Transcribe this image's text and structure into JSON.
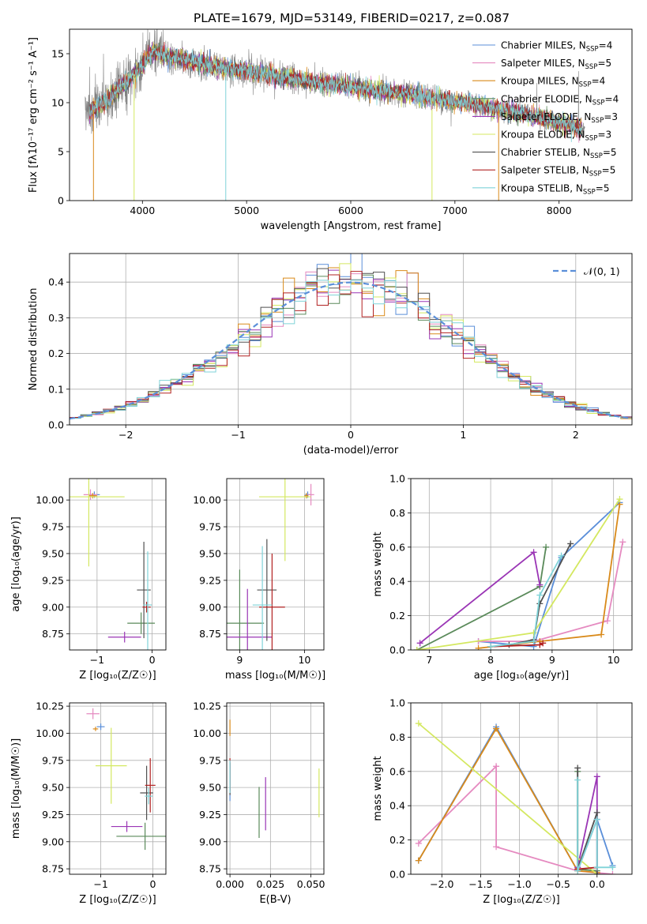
{
  "figure": {
    "title": "PLATE=1679, MJD=53149, FIBERID=0217, z=0.087"
  },
  "legend_models": [
    {
      "name": "Chabrier MILES",
      "nssp": "4",
      "color": "#5b8fd9"
    },
    {
      "name": "Salpeter MILES",
      "nssp": "5",
      "color": "#e58ac0"
    },
    {
      "name": "Kroupa MILES",
      "nssp": "4",
      "color": "#d98a1a"
    },
    {
      "name": "Chabrier ELODIE",
      "nssp": "4",
      "color": "#5a8a5a"
    },
    {
      "name": "Salpeter ELODIE",
      "nssp": "3",
      "color": "#9a35b5"
    },
    {
      "name": "Kroupa ELODIE",
      "nssp": "3",
      "color": "#d4e860"
    },
    {
      "name": "Chabrier STELIB",
      "nssp": "5",
      "color": "#505050"
    },
    {
      "name": "Salpeter STELIB",
      "nssp": "5",
      "color": "#b22222"
    },
    {
      "name": "Kroupa STELIB",
      "nssp": "5",
      "color": "#7fd3d8"
    }
  ],
  "chart_data": [
    {
      "id": "spectrum",
      "type": "line",
      "xlabel": "wavelength [Angstrom, rest frame]",
      "ylabel": "Flux [fλ10⁻¹⁷ erg cm⁻² s⁻¹ A⁻¹]",
      "xlim": [
        3300,
        8700
      ],
      "ylim": [
        0,
        17.5
      ],
      "xticks": [
        4000,
        5000,
        6000,
        7000,
        8000
      ],
      "yticks": [
        0,
        5,
        10,
        15
      ],
      "grid": false,
      "legend_position": "top-right",
      "series_shape": [
        [
          3450,
          8.7
        ],
        [
          3600,
          9.8
        ],
        [
          3800,
          11.6
        ],
        [
          4000,
          13.8
        ],
        [
          4100,
          15.2
        ],
        [
          4300,
          14.6
        ],
        [
          4600,
          13.9
        ],
        [
          5000,
          13.2
        ],
        [
          5400,
          12.5
        ],
        [
          5800,
          11.9
        ],
        [
          6200,
          11.3
        ],
        [
          6600,
          10.8
        ],
        [
          7000,
          10.1
        ],
        [
          7400,
          9.4
        ],
        [
          7800,
          8.5
        ],
        [
          8200,
          7.4
        ]
      ],
      "data_extent": [
        3450,
        8250
      ]
    },
    {
      "id": "residuals",
      "type": "line",
      "xlabel": "(data-model)/error",
      "ylabel": "Normed distribution",
      "xlim": [
        -2.5,
        2.5
      ],
      "ylim": [
        0,
        0.48
      ],
      "xticks": [
        -2,
        -1,
        0,
        1,
        2
      ],
      "yticks": [
        0.0,
        0.1,
        0.2,
        0.3,
        0.4
      ],
      "grid": true,
      "legend_position": "top-right",
      "reference_label": "𝒩(0, 1)",
      "reference_color": "#5b8fd9",
      "bin_width": 0.1
    },
    {
      "id": "age_vs_Z",
      "type": "scatter",
      "xlabel": "Z [log₁₀(Z/Z☉)]",
      "ylabel": "age  [log₁₀(age/yr)]",
      "xlim": [
        -1.5,
        0.25
      ],
      "ylim": [
        8.6,
        10.2
      ],
      "xticks": [
        -1,
        0
      ],
      "yticks": [
        8.75,
        9.0,
        9.25,
        9.5,
        9.75,
        10.0
      ],
      "grid": true,
      "points": [
        {
          "model": 0,
          "x": -1.05,
          "y": 10.05,
          "xerr": 0.2,
          "yerr": 0.06
        },
        {
          "model": 1,
          "x": -1.12,
          "y": 10.05,
          "xerr": 0.25,
          "yerr": 0.1
        },
        {
          "model": 2,
          "x": -1.08,
          "y": 10.04,
          "xerr": 0.15,
          "yerr": 0.05
        },
        {
          "model": 3,
          "x": -0.2,
          "y": 8.85,
          "xerr": 0.5,
          "yerr": 0.2
        },
        {
          "model": 4,
          "x": -0.5,
          "y": 8.72,
          "xerr": 0.6,
          "yerr": 0.1
        },
        {
          "model": 5,
          "x": -1.15,
          "y": 10.03,
          "xerr": 1.3,
          "yerr": 1.3
        },
        {
          "model": 6,
          "x": -0.15,
          "y": 9.16,
          "xerr": 0.25,
          "yerr": 0.9
        },
        {
          "model": 7,
          "x": -0.1,
          "y": 9.0,
          "xerr": 0.15,
          "yerr": 0.1
        },
        {
          "model": 8,
          "x": -0.08,
          "y": 9.02,
          "xerr": 0.15,
          "yerr": 1.0
        }
      ]
    },
    {
      "id": "age_vs_mass",
      "type": "scatter",
      "xlabel": "mass [log₁₀(M/M☉)]",
      "ylabel": "",
      "xlim": [
        8.8,
        10.3
      ],
      "ylim": [
        8.6,
        10.2
      ],
      "xticks": [
        9,
        10
      ],
      "yticks": [
        8.75,
        9.0,
        9.25,
        9.5,
        9.75,
        10.0
      ],
      "grid": true,
      "points": [
        {
          "model": 0,
          "x": 10.05,
          "y": 10.05,
          "xerr": 0.08,
          "yerr": 0.06
        },
        {
          "model": 1,
          "x": 10.1,
          "y": 10.05,
          "xerr": 0.1,
          "yerr": 0.2
        },
        {
          "model": 2,
          "x": 10.03,
          "y": 10.04,
          "xerr": 0.06,
          "yerr": 0.05
        },
        {
          "model": 3,
          "x": 9.0,
          "y": 8.85,
          "xerr": 0.75,
          "yerr": 1.0
        },
        {
          "model": 4,
          "x": 9.12,
          "y": 8.72,
          "xerr": 0.75,
          "yerr": 0.9
        },
        {
          "model": 5,
          "x": 9.7,
          "y": 10.03,
          "xerr": 0.8,
          "yerr": 1.2
        },
        {
          "model": 6,
          "x": 9.42,
          "y": 9.16,
          "xerr": 0.3,
          "yerr": 0.95
        },
        {
          "model": 7,
          "x": 9.5,
          "y": 9.0,
          "xerr": 0.4,
          "yerr": 1.0
        },
        {
          "model": 8,
          "x": 9.35,
          "y": 9.02,
          "xerr": 0.3,
          "yerr": 1.1
        }
      ]
    },
    {
      "id": "massweight_vs_age",
      "type": "line",
      "xlabel": "age  [log₁₀(age/yr)]",
      "ylabel": "mass weight",
      "xlim": [
        6.7,
        10.3
      ],
      "ylim": [
        0,
        1.0
      ],
      "xticks": [
        7,
        8,
        9,
        10
      ],
      "yticks": [
        0.0,
        0.2,
        0.4,
        0.6,
        0.8,
        1.0
      ],
      "grid": true,
      "series": [
        {
          "model": 0,
          "x": [
            7.8,
            8.7,
            9.15,
            10.1
          ],
          "y": [
            0.05,
            0.02,
            0.54,
            0.86
          ]
        },
        {
          "model": 1,
          "x": [
            7.8,
            8.7,
            9.9,
            10.15
          ],
          "y": [
            0.05,
            0.05,
            0.17,
            0.63
          ]
        },
        {
          "model": 2,
          "x": [
            7.8,
            8.8,
            9.8,
            10.1
          ],
          "y": [
            0.01,
            0.05,
            0.09,
            0.85
          ]
        },
        {
          "model": 3,
          "x": [
            6.8,
            8.8,
            8.9
          ],
          "y": [
            0.0,
            0.37,
            0.6
          ]
        },
        {
          "model": 4,
          "x": [
            6.85,
            8.7,
            8.8
          ],
          "y": [
            0.04,
            0.57,
            0.38
          ]
        },
        {
          "model": 5,
          "x": [
            6.8,
            8.7,
            10.1
          ],
          "y": [
            0.0,
            0.1,
            0.88
          ]
        },
        {
          "model": 6,
          "x": [
            8.3,
            8.7,
            8.8,
            9.3
          ],
          "y": [
            0.03,
            0.06,
            0.27,
            0.62
          ]
        },
        {
          "model": 7,
          "x": [
            8.0,
            8.8,
            8.85
          ],
          "y": [
            0.02,
            0.03,
            0.04
          ]
        },
        {
          "model": 8,
          "x": [
            8.0,
            8.7,
            8.8,
            9.15
          ],
          "y": [
            0.02,
            0.05,
            0.32,
            0.55
          ]
        }
      ]
    },
    {
      "id": "mass_vs_Z",
      "type": "scatter",
      "xlabel": "Z [log₁₀(Z/Z☉)]",
      "ylabel": "mass [log₁₀(M/M☉)]",
      "xlim": [
        -1.6,
        0.25
      ],
      "ylim": [
        8.7,
        10.28
      ],
      "xticks": [
        -1,
        0
      ],
      "yticks": [
        8.75,
        9.0,
        9.25,
        9.5,
        9.75,
        10.0,
        10.25
      ],
      "grid": true,
      "points": [
        {
          "model": 0,
          "x": -1.0,
          "y": 10.06,
          "xerr": 0.15,
          "yerr": 0.06
        },
        {
          "model": 1,
          "x": -1.15,
          "y": 10.18,
          "xerr": 0.25,
          "yerr": 0.1
        },
        {
          "model": 2,
          "x": -1.1,
          "y": 10.04,
          "xerr": 0.1,
          "yerr": 0.04
        },
        {
          "model": 3,
          "x": -0.15,
          "y": 9.05,
          "xerr": 1.1,
          "yerr": 0.25
        },
        {
          "model": 4,
          "x": -0.5,
          "y": 9.14,
          "xerr": 0.6,
          "yerr": 0.1
        },
        {
          "model": 5,
          "x": -0.8,
          "y": 9.7,
          "xerr": 0.6,
          "yerr": 0.7
        },
        {
          "model": 6,
          "x": -0.12,
          "y": 9.45,
          "xerr": 0.25,
          "yerr": 0.5
        },
        {
          "model": 7,
          "x": -0.05,
          "y": 9.52,
          "xerr": 0.2,
          "yerr": 0.5
        },
        {
          "model": 8,
          "x": -0.08,
          "y": 9.42,
          "xerr": 0.15,
          "yerr": 0.15
        }
      ]
    },
    {
      "id": "mass_vs_ebv",
      "type": "scatter",
      "xlabel": "E(B-V)",
      "ylabel": "",
      "xlim": [
        -0.002,
        0.058
      ],
      "ylim": [
        8.7,
        10.28
      ],
      "xticks": [
        0.0,
        0.025,
        0.05
      ],
      "yticks": [
        8.75,
        9.0,
        9.25,
        9.5,
        9.75,
        10.0,
        10.25
      ],
      "grid": true,
      "points": [
        {
          "model": 0,
          "x": 0.0,
          "y": 9.55,
          "xerr": 0,
          "yerr": 0.35
        },
        {
          "model": 1,
          "x": 0.0,
          "y": 9.6,
          "xerr": 0,
          "yerr": 0.3
        },
        {
          "model": 2,
          "x": 0.0,
          "y": 10.05,
          "xerr": 0,
          "yerr": 0.15
        },
        {
          "model": 3,
          "x": 0.018,
          "y": 9.27,
          "xerr": 0,
          "yerr": 0.47
        },
        {
          "model": 4,
          "x": 0.022,
          "y": 9.35,
          "xerr": 0,
          "yerr": 0.49
        },
        {
          "model": 5,
          "x": 0.055,
          "y": 9.45,
          "xerr": 0,
          "yerr": 0.45
        },
        {
          "model": 6,
          "x": 0.0,
          "y": 9.58,
          "xerr": 0,
          "yerr": 0.3
        },
        {
          "model": 7,
          "x": 0.0,
          "y": 9.62,
          "xerr": 0,
          "yerr": 0.3
        },
        {
          "model": 8,
          "x": 0.0,
          "y": 9.6,
          "xerr": 0,
          "yerr": 0.3
        }
      ]
    },
    {
      "id": "massweight_vs_Z",
      "type": "line",
      "xlabel": "Z [log₁₀(Z/Z☉)]",
      "ylabel": "mass weight",
      "xlim": [
        -2.4,
        0.45
      ],
      "ylim": [
        0,
        1.0
      ],
      "xticks": [
        -2.0,
        -1.5,
        -1.0,
        -0.5,
        0.0
      ],
      "yticks": [
        0.0,
        0.2,
        0.4,
        0.6,
        0.8,
        1.0
      ],
      "grid": true,
      "series": [
        {
          "model": 0,
          "x": [
            -2.3,
            -1.3,
            -0.25,
            0.0,
            0.2
          ],
          "y": [
            0.08,
            0.86,
            0.02,
            0.32,
            0.05
          ]
        },
        {
          "model": 1,
          "x": [
            -2.3,
            -1.3,
            -1.3,
            -0.25,
            0.2
          ],
          "y": [
            0.18,
            0.63,
            0.16,
            0.02,
            0.0
          ]
        },
        {
          "model": 2,
          "x": [
            -2.3,
            -1.3,
            -0.25,
            0.0
          ],
          "y": [
            0.08,
            0.85,
            0.02,
            0.01
          ]
        },
        {
          "model": 3,
          "x": [
            -0.25,
            -0.25,
            0.0
          ],
          "y": [
            0.6,
            0.03,
            0.02
          ]
        },
        {
          "model": 4,
          "x": [
            -0.25,
            0.0,
            0.0
          ],
          "y": [
            0.04,
            0.57,
            0.0
          ]
        },
        {
          "model": 5,
          "x": [
            -2.3,
            0.0
          ],
          "y": [
            0.88,
            0.0
          ]
        },
        {
          "model": 6,
          "x": [
            -0.25,
            -0.25,
            0.0,
            0.0
          ],
          "y": [
            0.62,
            0.03,
            0.36,
            0.0
          ]
        },
        {
          "model": 7,
          "x": [
            -0.25,
            0.0
          ],
          "y": [
            0.03,
            0.04
          ]
        },
        {
          "model": 8,
          "x": [
            -0.25,
            -0.25,
            0.0,
            0.0,
            0.2
          ],
          "y": [
            0.55,
            0.02,
            0.32,
            0.04,
            0.04
          ]
        }
      ]
    }
  ]
}
